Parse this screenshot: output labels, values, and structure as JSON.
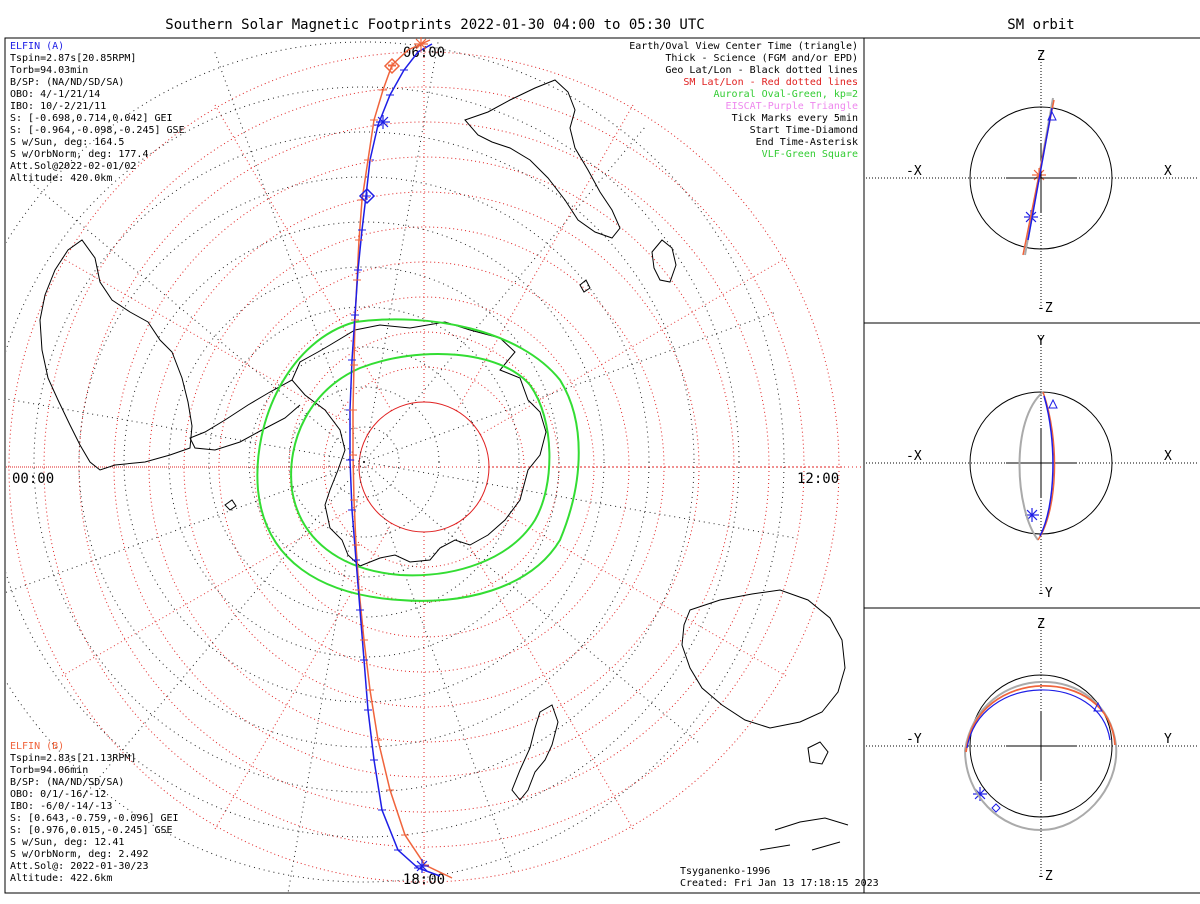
{
  "title": "Southern Solar Magnetic Footprints 2022-01-30 04:00 to 05:30 UTC",
  "orbit_title": "SM orbit",
  "colors": {
    "elfin_a": "#1e1ee6",
    "elfin_b": "#f0643c",
    "oval": "#33dd33",
    "eiscat": "#ee88ee",
    "sm_grid": "#e02020",
    "geo_grid": "#222222"
  },
  "time_labels": {
    "top": "06:00",
    "left": "00:00",
    "right": "12:00",
    "bottom": "18:00"
  },
  "elfin_a": {
    "title": "ELFIN (A)",
    "lines": [
      "Tspin=2.87s[20.85RPM]",
      "Torb=94.03min",
      "B/SP: (NA/ND/SD/SA)",
      "OBO: 4/-1/21/14",
      "IBO: 10/-2/21/11",
      "S: [-0.698,0.714,0.042] GEI",
      "S: [-0.964,-0.098,-0.245] GSE",
      "S w/Sun, deg: 164.5",
      "S w/OrbNorm, deg: 177.4",
      "Att.Sol@2022-02-01/02",
      "Altitude: 420.0km"
    ]
  },
  "elfin_b": {
    "title": "ELFIN (B)",
    "lines": [
      "Tspin=2.83s[21.13RPM]",
      "Torb=94.06min",
      "B/SP: (NA/ND/SD/SA)",
      "OBO: 0/1/-16/-12",
      "IBO: -6/0/-14/-13",
      "S: [0.643,-0.759,-0.096] GEI",
      "S: [0.976,0.015,-0.245] GSE",
      "S w/Sun, deg: 12.41",
      "S w/OrbNorm, deg: 2.492",
      "Att.Sol@: 2022-01-30/23",
      "Altitude: 422.6km"
    ]
  },
  "legend": [
    {
      "text": "Earth/Oval View Center Time (triangle)",
      "color": "#000000"
    },
    {
      "text": "Thick - Science (FGM and/or EPD)",
      "color": "#000000"
    },
    {
      "text": "Geo Lat/Lon - Black dotted lines",
      "color": "#000000"
    },
    {
      "text": "SM Lat/Lon - Red dotted lines",
      "color": "#e02020"
    },
    {
      "text": "Auroral Oval-Green, kp=2",
      "color": "#33cc33"
    },
    {
      "text": "EISCAT-Purple Triangle",
      "color": "#ee88ee"
    },
    {
      "text": "Tick Marks every 5min",
      "color": "#000000"
    },
    {
      "text": "Start Time-Diamond",
      "color": "#000000"
    },
    {
      "text": "End Time-Asterisk",
      "color": "#000000"
    },
    {
      "text": "VLF-Green Square",
      "color": "#33cc33"
    }
  ],
  "footer": {
    "model": "Tsyganenko-1996",
    "created": "Created: Fri Jan 13 17:18:15 2023"
  },
  "orbit_panels": [
    {
      "top": "Z",
      "bottom": "-Z",
      "left": "-X",
      "right": "X"
    },
    {
      "top": "Y",
      "bottom": "-Y",
      "left": "-X",
      "right": "X"
    },
    {
      "top": "Z",
      "bottom": "-Z",
      "left": "-Y",
      "right": "Y"
    }
  ]
}
